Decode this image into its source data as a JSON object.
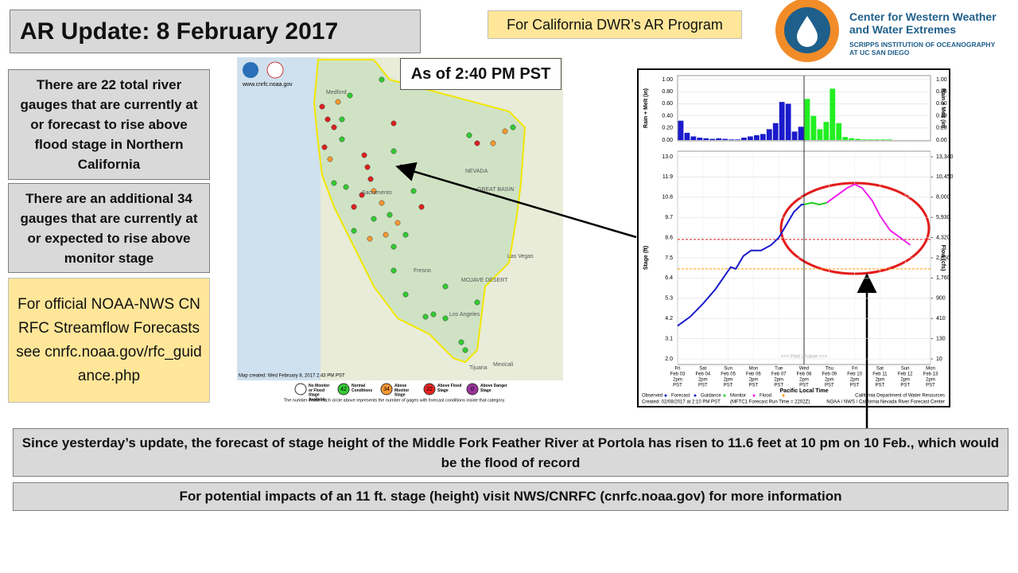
{
  "header": {
    "title": "AR Update: 8 February 2017",
    "program": "For California DWR’s AR Program",
    "as_of": "As of 2:40 PM PST"
  },
  "logo": {
    "name": "Center for Western Weather and Water Extremes",
    "institution": "SCRIPPS INSTITUTION OF OCEANOGRAPHY AT UC SAN DIEGO"
  },
  "notes": [
    "There are 22 total river gauges that are currently at or forecast to rise above flood stage in Northern California",
    "There are an additional  34 gauges that are currently at or expected to rise above monitor stage",
    "For official NOAA-NWS CNRFC Streamflow Forecasts see cnrfc.noaa.gov/rfc_guidance.php"
  ],
  "map": {
    "site": "www.cnrfc.noaa.gov",
    "created": "Map created: Wed February 8, 2017 2:43 PM PST",
    "places": [
      "Medford",
      "NEVADA",
      "GREAT BASIN",
      "Sacramento",
      "Fresno",
      "MOJAVE DESERT",
      "Las Vegas",
      "Los Angeles",
      "Tijuana",
      "Mexicali"
    ],
    "legend": [
      {
        "label": "No Monitor or Flood Stage Available",
        "color": "#ffffff"
      },
      {
        "count": "42",
        "label": "Normal Conditions",
        "color": "#33cc33"
      },
      {
        "count": "34",
        "label": "Above Monitor Stage",
        "color": "#ff9933"
      },
      {
        "count": "22",
        "label": "Above Flood Stage",
        "color": "#ee2222"
      },
      {
        "count": "0",
        "label": "Above Danger Stage",
        "color": "#993399"
      }
    ],
    "note": "The number inside each circle above represents the number of gages with forecast conditions inside that category."
  },
  "chart_data": {
    "type": "line",
    "ylabel": "Stage (ft)",
    "y2label": "Flow (cfs)",
    "xlabel": "Pacific Local Time",
    "xlim": [
      0,
      10
    ],
    "ylim": [
      2,
      13
    ],
    "yticks": [
      {
        "value": 2,
        "label": "2.0"
      },
      {
        "value": 3.1,
        "label": "3.1"
      },
      {
        "value": 4.2,
        "label": "4.2"
      },
      {
        "value": 5.3,
        "label": "5.3"
      },
      {
        "value": 6.4,
        "label": "6.4"
      },
      {
        "value": 7.5,
        "label": "7.5"
      },
      {
        "value": 8.6,
        "label": "8.6"
      },
      {
        "value": 9.7,
        "label": "9.7"
      },
      {
        "value": 10.8,
        "label": "10.8"
      },
      {
        "value": 11.9,
        "label": "11.9"
      },
      {
        "value": 13,
        "label": "13.0"
      }
    ],
    "y2ticks": [
      10,
      130,
      410,
      900,
      {
        "value": 1760,
        "label": "1,760"
      },
      {
        "value": 2850,
        "label": "2,850"
      },
      {
        "value": 4320,
        "label": "4,320"
      },
      {
        "value": 5930,
        "label": "5,930"
      },
      {
        "value": 8000,
        "label": "8,000"
      },
      {
        "value": 10450,
        "label": "10,450"
      },
      {
        "value": 13340,
        "label": "13,340"
      }
    ],
    "xticks": [
      {
        "value": 0,
        "label": [
          "Fri",
          "Feb 03",
          "2pm",
          "PST"
        ]
      },
      {
        "value": 1,
        "label": [
          "Sat",
          "Feb 04",
          "2pm",
          "PST"
        ]
      },
      {
        "value": 2,
        "label": [
          "Sun",
          "Feb 05",
          "2pm",
          "PST"
        ]
      },
      {
        "value": 3,
        "label": [
          "Mon",
          "Feb 06",
          "2pm",
          "PST"
        ]
      },
      {
        "value": 4,
        "label": [
          "Tue",
          "Feb 07",
          "2pm",
          "PST"
        ]
      },
      {
        "value": 5,
        "label": [
          "Wed",
          "Feb 08",
          "2pm",
          "PST"
        ]
      },
      {
        "value": 6,
        "label": [
          "Thu",
          "Feb 09",
          "2pm",
          "PST"
        ]
      },
      {
        "value": 7,
        "label": [
          "Fri",
          "Feb 10",
          "2pm",
          "PST"
        ]
      },
      {
        "value": 8,
        "label": [
          "Sat",
          "Feb 11",
          "2pm",
          "PST"
        ]
      },
      {
        "value": 9,
        "label": [
          "Sun",
          "Feb 12",
          "2pm",
          "PST"
        ]
      },
      {
        "value": 10,
        "label": [
          "Mon",
          "Feb 13",
          "2pm",
          "PST"
        ]
      }
    ],
    "flood_stage": 8.5,
    "monitor_stage": 6.9,
    "series": [
      {
        "name": "Observed",
        "color": "#1a1acc",
        "x": [
          0,
          0.5,
          1,
          1.5,
          1.9,
          2.1,
          2.3,
          2.6,
          2.9,
          3.3,
          3.7,
          4,
          4.3,
          4.6,
          4.9,
          5
        ],
        "values": [
          3.8,
          4.3,
          5,
          5.8,
          6.6,
          7,
          6.9,
          7.6,
          7.9,
          7.9,
          8.2,
          8.6,
          9.3,
          10,
          10.4,
          10.4
        ]
      },
      {
        "name": "Guidance",
        "color": "#22cc22",
        "x": [
          5,
          5.3,
          5.6,
          5.9
        ],
        "values": [
          10.4,
          10.5,
          10.4,
          10.5
        ]
      },
      {
        "name": "Forecast",
        "color": "#ee22ee",
        "x": [
          5.9,
          6.3,
          6.7,
          7,
          7.3,
          7.7,
          8,
          8.4,
          8.8,
          9.2
        ],
        "values": [
          10.5,
          10.9,
          11.3,
          11.5,
          11.3,
          10.6,
          9.8,
          9,
          8.6,
          8.2
        ]
      }
    ],
    "rain": {
      "label": "Rain + Melt (in)",
      "ylim": [
        0,
        1
      ],
      "yticks": [
        {
          "value": 0,
          "label": "0.00"
        },
        {
          "value": 0.2,
          "label": "0.20"
        },
        {
          "value": 0.4,
          "label": "0.40"
        },
        {
          "value": 0.6,
          "label": "0.60"
        },
        {
          "value": 0.8,
          "label": "0.80"
        },
        {
          "value": 1,
          "label": "1.00"
        }
      ],
      "series": [
        {
          "name": "Observed",
          "color": "#1a1acc",
          "x": [
            0.125,
            0.375,
            0.625,
            0.875,
            1.125,
            1.375,
            1.625,
            1.875,
            2.125,
            2.375,
            2.625,
            2.875,
            3.125,
            3.375,
            3.625,
            3.875,
            4.125,
            4.375,
            4.625,
            4.875
          ],
          "values": [
            0.32,
            0.12,
            0.06,
            0.04,
            0.03,
            0.02,
            0.03,
            0.02,
            0.01,
            0.01,
            0.04,
            0.06,
            0.08,
            0.1,
            0.18,
            0.28,
            0.63,
            0.6,
            0.14,
            0.22
          ]
        },
        {
          "name": "Forecast",
          "color": "#22ee22",
          "x": [
            5.125,
            5.375,
            5.625,
            5.875,
            6.125,
            6.375,
            6.625,
            6.875,
            7.125,
            7.375,
            7.625,
            7.875,
            8.125,
            8.375,
            8.625,
            8.875,
            9.125,
            9.375,
            9.625,
            9.875
          ],
          "values": [
            0.68,
            0.4,
            0.18,
            0.3,
            0.85,
            0.28,
            0.05,
            0.03,
            0.02,
            0.01,
            0.01,
            0.01,
            0.01,
            0.01,
            0,
            0,
            0,
            0,
            0,
            0
          ]
        }
      ]
    },
    "legend": [
      {
        "label": "Observed",
        "color": "#1a1acc"
      },
      {
        "label": "Forecast",
        "color": "#1a1acc"
      },
      {
        "label": "Guidance",
        "color": "#22cc22"
      },
      {
        "label": "Monitor",
        "color": "#ee22ee"
      },
      {
        "label": "Flood",
        "color": "#ff9900"
      }
    ],
    "past_future": "<<< Past | Future >>>",
    "created": "Created: 02/08/2017 at 2:10 PM PST",
    "run": "(MFTC1 Forecast Run Time = 2202Z)",
    "source": [
      "California Department of Water Resources",
      "NOAA / NWS / California Nevada River Forecast Center"
    ]
  },
  "summary": "Since yesterday’s update, the forecast of stage height of the Middle Fork Feather River at Portola has risen to 11.6 feet at 10 pm on 10 Feb., which would be the flood of record",
  "impacts": "For potential impacts of an 11 ft. stage (height) visit NWS/CNRFC (cnrfc.noaa.gov) for more information"
}
